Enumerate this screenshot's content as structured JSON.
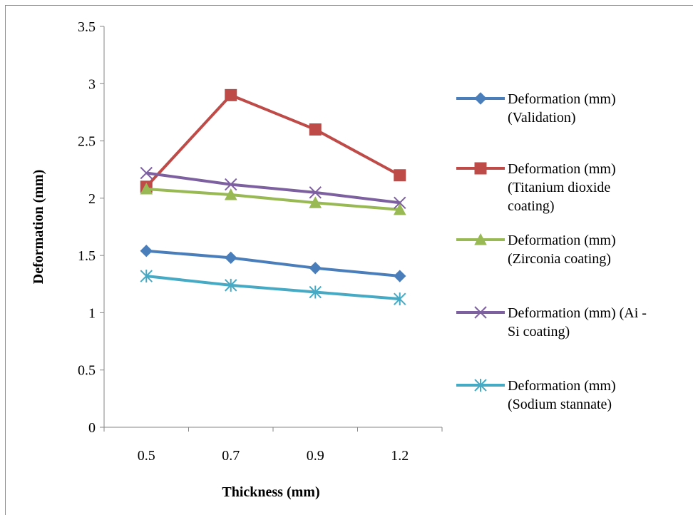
{
  "chart_data": {
    "type": "line",
    "xlabel": "Thickness (mm)",
    "ylabel": "Deformation (mm)",
    "categories": [
      "0.5",
      "0.7",
      "0.9",
      "1.2"
    ],
    "ylim": [
      0,
      3.5
    ],
    "yticks": [
      "0",
      "0.5",
      "1",
      "1.5",
      "2",
      "2.5",
      "3",
      "3.5"
    ],
    "grid": false,
    "legend_position": "right",
    "series": [
      {
        "name_lines": [
          "Deformation (mm)",
          "(Validation)"
        ],
        "color": "#4a7ebb",
        "marker": "diamond",
        "values": [
          1.54,
          1.48,
          1.39,
          1.32
        ]
      },
      {
        "name_lines": [
          "Deformation (mm)",
          "(Titanium dioxide",
          "coating)"
        ],
        "color": "#be4b48",
        "marker": "square",
        "values": [
          2.1,
          2.9,
          2.6,
          2.2
        ]
      },
      {
        "name_lines": [
          "Deformation (mm)",
          "(Zirconia coating)"
        ],
        "color": "#98b954",
        "marker": "triangle",
        "values": [
          2.08,
          2.03,
          1.96,
          1.9
        ]
      },
      {
        "name_lines": [
          "Deformation (mm) (Ai -",
          "Si coating)"
        ],
        "color": "#7d60a0",
        "marker": "x",
        "values": [
          2.22,
          2.12,
          2.05,
          1.96
        ]
      },
      {
        "name_lines": [
          "Deformation (mm)",
          "(Sodium stannate)"
        ],
        "color": "#46aac5",
        "marker": "star",
        "values": [
          1.32,
          1.24,
          1.18,
          1.12
        ]
      }
    ]
  }
}
